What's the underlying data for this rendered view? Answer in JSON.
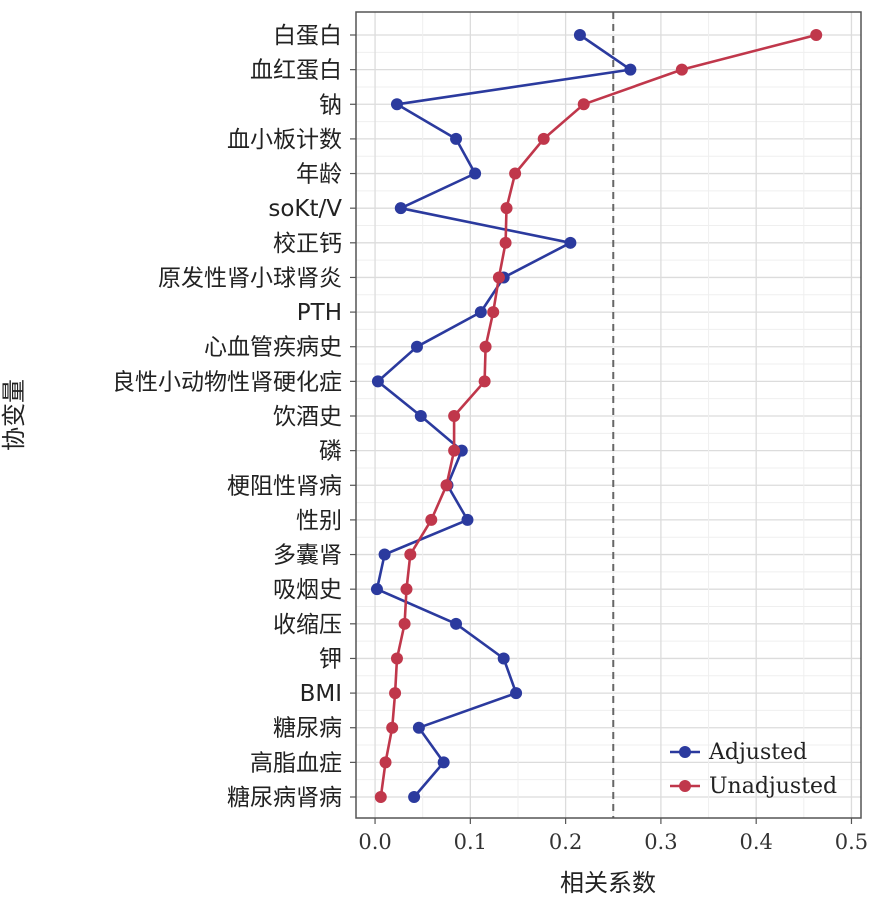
{
  "chart_data": {
    "type": "line",
    "orientation": "horizontal",
    "xlabel": "相关系数",
    "ylabel": "协变量",
    "xlim": [
      -0.02,
      0.51
    ],
    "x_ticks": [
      0.0,
      0.1,
      0.2,
      0.3,
      0.4,
      0.5
    ],
    "x_tick_labels": [
      "0.0",
      "0.1",
      "0.2",
      "0.3",
      "0.4",
      "0.5"
    ],
    "grid": true,
    "legend_position": "bottom-right",
    "reference_line": {
      "x": 0.25,
      "style": "dashed"
    },
    "categories": [
      "白蛋白",
      "血红蛋白",
      "钠",
      "血小板计数",
      "年龄",
      "soKt/V",
      "校正钙",
      "原发性肾小球肾炎",
      "PTH",
      "心血管疾病史",
      "良性小动物性肾硬化症",
      "饮酒史",
      "磷",
      "梗阻性肾病",
      "性别",
      "多囊肾",
      "吸烟史",
      "收缩压",
      "钾",
      "BMI",
      "糖尿病",
      "高脂血症",
      "糖尿病肾病"
    ],
    "series": [
      {
        "name": "Adjusted",
        "color": "#2b3a9e",
        "values": [
          0.215,
          0.268,
          0.023,
          0.085,
          0.105,
          0.027,
          0.205,
          0.135,
          0.111,
          0.044,
          0.003,
          0.048,
          0.091,
          0.076,
          0.097,
          0.01,
          0.002,
          0.085,
          0.135,
          0.148,
          0.046,
          0.072,
          0.041
        ]
      },
      {
        "name": "Unadjusted",
        "color": "#c0374b",
        "values": [
          0.463,
          0.322,
          0.219,
          0.177,
          0.147,
          0.138,
          0.137,
          0.13,
          0.124,
          0.116,
          0.115,
          0.083,
          0.083,
          0.075,
          0.059,
          0.037,
          0.033,
          0.031,
          0.023,
          0.021,
          0.018,
          0.011,
          0.006
        ]
      }
    ]
  }
}
